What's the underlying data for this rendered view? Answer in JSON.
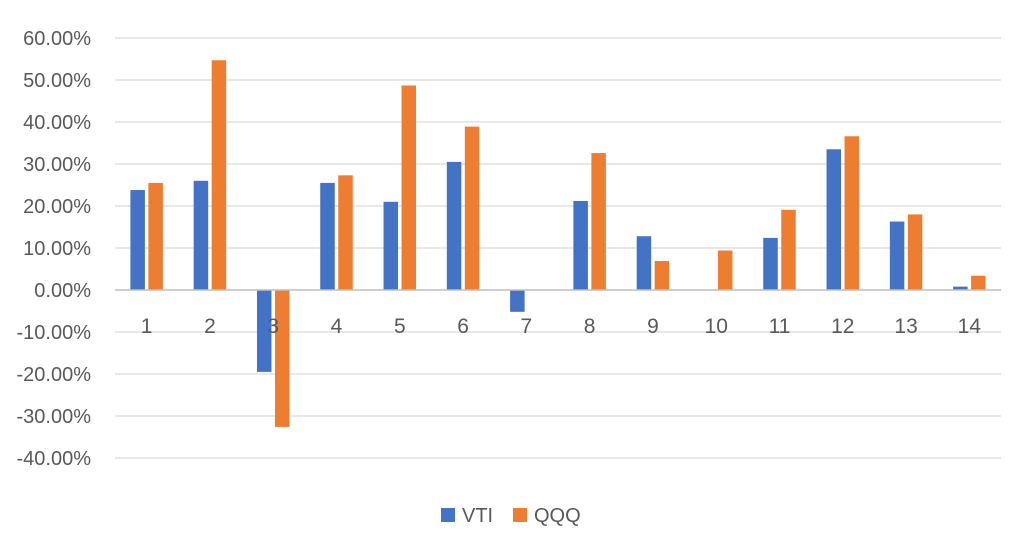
{
  "chart_data": {
    "type": "bar",
    "categories": [
      "1",
      "2",
      "3",
      "4",
      "5",
      "6",
      "7",
      "8",
      "9",
      "10",
      "11",
      "12",
      "13",
      "14"
    ],
    "series": [
      {
        "name": "VTI",
        "color": "#4472C4",
        "values": [
          23.8,
          26.0,
          -19.5,
          25.5,
          21.0,
          30.5,
          -5.2,
          21.2,
          12.8,
          0.0,
          12.4,
          33.5,
          16.3,
          0.8
        ]
      },
      {
        "name": "QQQ",
        "color": "#ED7D31",
        "values": [
          25.5,
          54.7,
          -32.6,
          27.3,
          48.7,
          38.9,
          0.0,
          32.6,
          6.9,
          9.4,
          19.1,
          36.6,
          18.0,
          3.4
        ]
      }
    ],
    "ylim": [
      -40,
      60
    ],
    "ytick_step": 10,
    "ytick_labels": [
      "60.00%",
      "50.00%",
      "40.00%",
      "30.00%",
      "20.00%",
      "10.00%",
      "0.00%",
      "-10.00%",
      "-20.00%",
      "-30.00%",
      "-40.00%"
    ],
    "grid": true,
    "legend": "bottom-center",
    "gridline_color": "#d9d9d9",
    "axis_line_color": "#bfbfbf"
  }
}
